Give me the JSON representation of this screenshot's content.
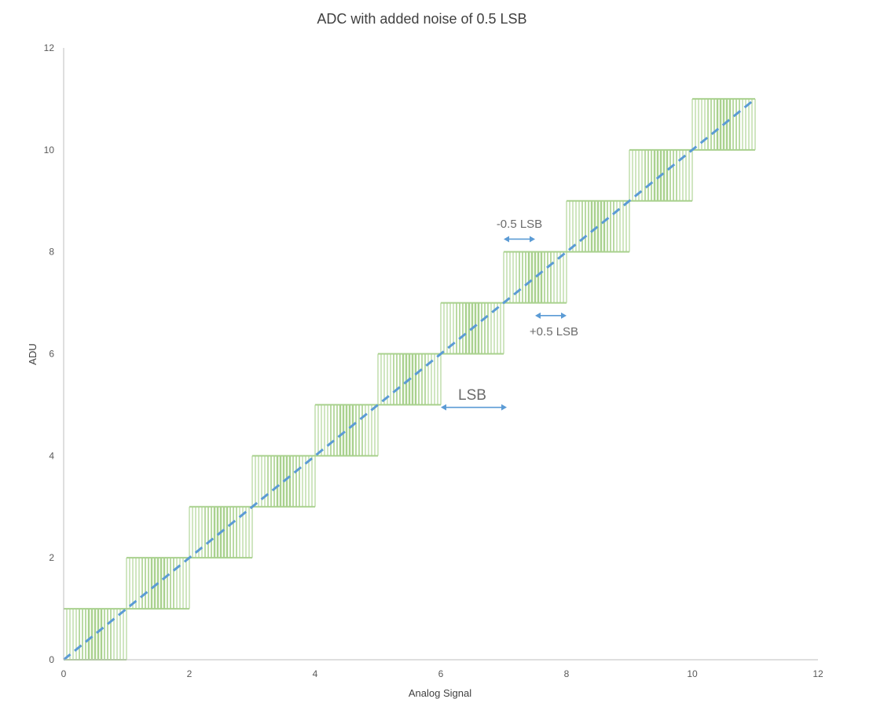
{
  "colors": {
    "step_color": "#a9d18e",
    "ideal_line_color": "#5b9bd5",
    "axis_color": "#bfbfbf",
    "annotation_arrow_color": "#5b9bd5",
    "text_color": "#595959"
  },
  "chart_data": {
    "type": "line",
    "title": "ADC with added noise of 0.5 LSB",
    "xlabel": "Analog Signal",
    "ylabel": "ADU",
    "xlim": [
      0,
      12
    ],
    "ylim": [
      0,
      12
    ],
    "x_ticks": [
      0,
      2,
      4,
      6,
      8,
      10,
      12
    ],
    "y_ticks": [
      0,
      2,
      4,
      6,
      8,
      10,
      12
    ],
    "grid": false,
    "legend": "none",
    "series": [
      {
        "style": "solid, dithered staircase with vertical noise bands",
        "color": "#a9d18e",
        "steps": [
          {
            "x_start": 0,
            "x_end": 1,
            "low": 0,
            "high": 1
          },
          {
            "x_start": 1,
            "x_end": 2,
            "low": 1,
            "high": 2
          },
          {
            "x_start": 2,
            "x_end": 3,
            "low": 2,
            "high": 3
          },
          {
            "x_start": 3,
            "x_end": 4,
            "low": 3,
            "high": 4
          },
          {
            "x_start": 4,
            "x_end": 5,
            "low": 4,
            "high": 5
          },
          {
            "x_start": 5,
            "x_end": 6,
            "low": 5,
            "high": 6
          },
          {
            "x_start": 6,
            "x_end": 7,
            "low": 6,
            "high": 7
          },
          {
            "x_start": 7,
            "x_end": 8,
            "low": 7,
            "high": 8
          },
          {
            "x_start": 8,
            "x_end": 9,
            "low": 8,
            "high": 9
          },
          {
            "x_start": 9,
            "x_end": 10,
            "low": 9,
            "high": 10
          },
          {
            "x_start": 10,
            "x_end": 11,
            "low": 10,
            "high": 11
          }
        ]
      },
      {
        "style": "dashed",
        "color": "#5b9bd5",
        "x": [
          0,
          11
        ],
        "y": [
          0,
          11
        ]
      }
    ],
    "annotations": [
      {
        "text": "-0.5 LSB",
        "arrow_x": [
          7.0,
          7.5
        ],
        "arrow_y": 8.25
      },
      {
        "text": "+0.5 LSB",
        "arrow_x": [
          7.5,
          8.0
        ],
        "arrow_y": 6.75
      },
      {
        "text": "LSB",
        "arrow_x": [
          6.0,
          7.05
        ],
        "arrow_y": 4.95,
        "emphasis": "large"
      }
    ]
  }
}
